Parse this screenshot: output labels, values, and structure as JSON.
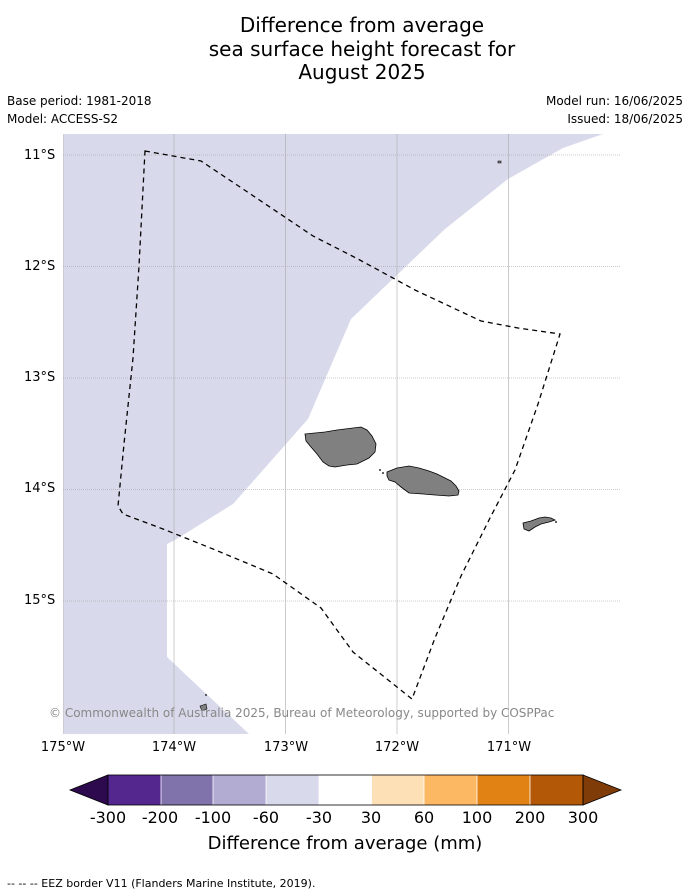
{
  "title": [
    "Difference from average",
    "sea surface height forecast for",
    "August 2025"
  ],
  "meta": {
    "base_period": "Base period: 1981-2018",
    "model": "Model: ACCESS-S2",
    "model_run": "Model run: 16/06/2025",
    "issued": "Issued: 18/06/2025"
  },
  "axes": {
    "lat_labels": [
      "11°S",
      "12°S",
      "13°S",
      "14°S",
      "15°S"
    ],
    "lon_labels": [
      "175°W",
      "174°W",
      "173°W",
      "172°W",
      "171°W"
    ]
  },
  "copyright": "© Commonwealth of Australia 2025, Bureau of Meteorology, supported by COSPPac",
  "legend": {
    "label": "Difference from average (mm)",
    "ticks": [
      "-300",
      "-200",
      "-100",
      "-60",
      "-30",
      "30",
      "60",
      "100",
      "200",
      "300"
    ],
    "colors": [
      "#2d0a4e",
      "#54278f",
      "#8073ac",
      "#b2abd2",
      "#d8daeb",
      "#ffffff",
      "#fee0b6",
      "#fdb863",
      "#e08214",
      "#b35806",
      "#7f3b08"
    ]
  },
  "footnote": "--  --  -- EEZ border V11 (Flanders Marine Institute, 2019).",
  "colors": {
    "anomaly_fill": "#d8daeb",
    "land": "#808080",
    "grid": "#999999"
  }
}
